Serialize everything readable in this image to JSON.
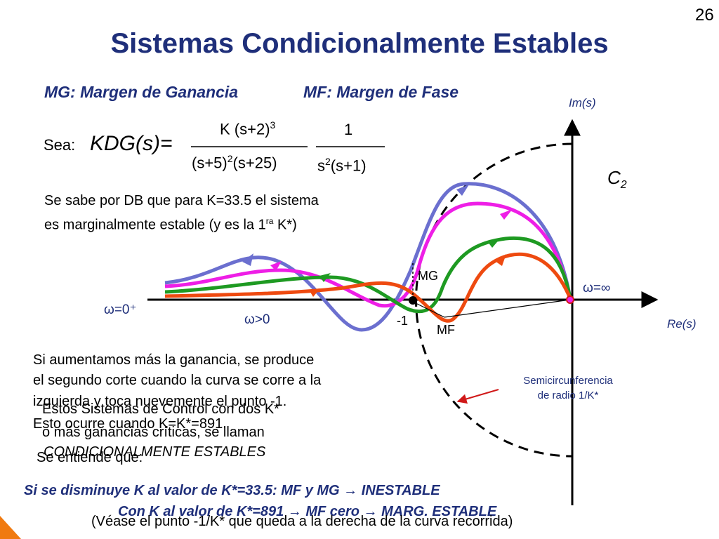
{
  "slide": {
    "number": "26",
    "title": "Sistemas Condicionalmente Estables",
    "mg_heading": "MG: Margen de Ganancia",
    "mf_heading": "MF: Margen de Fase"
  },
  "equation": {
    "sea": "Sea:",
    "lhs": "KDG(s)=",
    "num1_base": "K (s+2)",
    "num1_exp": "3",
    "den1_a": "(s+5)",
    "den1_a_exp": "2",
    "den1_b": "(s+25)",
    "num2": "1",
    "den2_a": "s",
    "den2_a_exp": "2",
    "den2_b": "(s+1)"
  },
  "text": {
    "db_line1": "Se sabe por DB que para K=33.5 el sistema",
    "db_line2_a": "es marginalmente estable (y es la 1",
    "db_line2_sup": "ra",
    "db_line2_b": " K*)",
    "more_gain_1": "Si aumentamos más la ganancia, se produce",
    "more_gain_2": "el segundo corte cuando la curva se corre a la",
    "more_gain_3": "izquierda y toca nuevemente el punto -1.",
    "more_gain_4": "Esto ocurre cuando K=K*=891.",
    "more_gain_5": "Se entiende que:",
    "cond_1": "Estos Sistemas de Control con dos K*",
    "cond_2": "o más ganancias críticas, se llaman",
    "cond_3": "CONDICIONALMENTE  ESTABLES",
    "bottom_1": "Si se disminuye K al valor de K*=33.5: MF y MG → INESTABLE",
    "bottom_2": "Con K al valor de K*=891 → MF cero → MARG. ESTABLE",
    "bottom_3": "(Véase el punto -1/K* que queda a la derecha de la curva recorrida)"
  },
  "plot": {
    "im_label": "Im(s)",
    "re_label": "Re(s)",
    "c2_label": "C",
    "c2_sub": "2",
    "omega_zero": "ω=0⁺",
    "omega_pos": "ω>0",
    "omega_inf": "ω=∞",
    "minus_one": "-1",
    "mg": "MG",
    "mf": "MF",
    "semicircle_note_1": "Semicircunferencia",
    "semicircle_note_2": "de radio 1/K*",
    "colors": {
      "blue": "#6b6fcf",
      "magenta": "#ee1ee6",
      "green": "#1e9a22",
      "orange": "#ee4a10",
      "axis": "#000000",
      "pointer": "#d01818"
    },
    "curves": [
      "blue",
      "magenta",
      "green",
      "orange"
    ]
  }
}
